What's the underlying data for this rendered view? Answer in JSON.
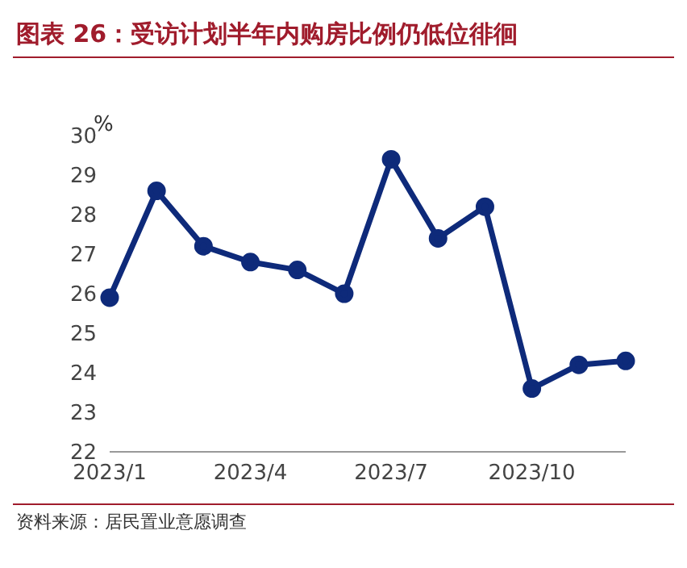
{
  "chart_data": {
    "type": "line",
    "title": "图表 26：受访计划半年内购房比例仍低位徘徊",
    "ylabel": "%",
    "categories": [
      "2023/1",
      null,
      null,
      "2023/4",
      null,
      null,
      "2023/7",
      null,
      null,
      "2023/10",
      null,
      null
    ],
    "series": [
      {
        "color": "#0e2a7a",
        "values": [
          25.9,
          28.6,
          27.2,
          26.8,
          26.6,
          26.0,
          29.4,
          27.4,
          28.2,
          23.6,
          24.2,
          24.3
        ]
      }
    ],
    "ylim": [
      22,
      30
    ],
    "yticks": [
      22,
      23,
      24,
      25,
      26,
      27,
      28,
      29,
      30
    ],
    "grid": false,
    "legend": false,
    "marker": "circle",
    "line_style": "solid",
    "annotations": [
      "资料来源：居民置业意愿调查"
    ]
  }
}
